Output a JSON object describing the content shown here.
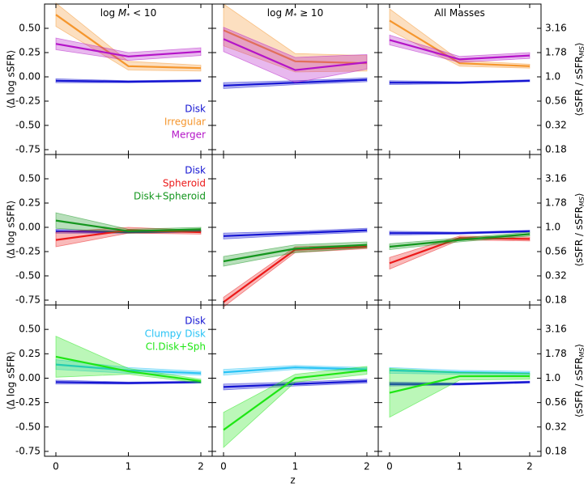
{
  "chart_data": {
    "type": "line",
    "layout": "3x3 grid of line panels with shaded uncertainty bands",
    "xlabel": "z",
    "x": [
      0,
      1,
      2
    ],
    "x_ticks": [
      "0",
      "1",
      "2"
    ],
    "ylim": [
      -0.8,
      0.75
    ],
    "left_ylabel": "⟨Δ log sSFR⟩",
    "right_ylabel_main": "⟨sSFR / sSFR",
    "right_ylabel_sub": "MS",
    "right_ylabel_close": "⟩",
    "left_ticks": [
      "0.50",
      "0.25",
      "0.00",
      "-0.25",
      "-0.50",
      "-0.75"
    ],
    "right_ticks": [
      "3.16",
      "1.78",
      "1.0",
      "0.56",
      "0.32",
      "0.18"
    ],
    "column_titles": [
      {
        "pre": "log ",
        "var": "M",
        "sub": "*",
        "post": " < 10"
      },
      {
        "pre": "log ",
        "var": "M",
        "sub": "*",
        "post": " ≥ 10"
      },
      {
        "pre": "All Masses",
        "var": "",
        "sub": "",
        "post": ""
      }
    ],
    "colors": {
      "Disk": "#1414d2",
      "Irregular": "#f5962d",
      "Merger": "#b414c8",
      "Spheroid": "#ec1a1a",
      "Disk+Spheroid": "#14961e",
      "Clumpy Disk": "#28c3f5",
      "Cl.Disk+Sph": "#1ee614"
    },
    "rows": [
      {
        "legend": [
          "Disk",
          "Irregular",
          "Merger"
        ],
        "panels": [
          {
            "series": [
              {
                "name": "Disk",
                "values": [
                  -0.04,
                  -0.05,
                  -0.04
                ],
                "lower": [
                  -0.06,
                  -0.06,
                  -0.05
                ],
                "upper": [
                  -0.02,
                  -0.04,
                  -0.03
                ]
              },
              {
                "name": "Irregular",
                "values": [
                  0.64,
                  0.11,
                  0.09
                ],
                "lower": [
                  0.52,
                  0.07,
                  0.06
                ],
                "upper": [
                  0.76,
                  0.16,
                  0.12
                ]
              },
              {
                "name": "Merger",
                "values": [
                  0.34,
                  0.21,
                  0.26
                ],
                "lower": [
                  0.28,
                  0.17,
                  0.22
                ],
                "upper": [
                  0.4,
                  0.25,
                  0.3
                ]
              }
            ]
          },
          {
            "series": [
              {
                "name": "Disk",
                "values": [
                  -0.09,
                  -0.06,
                  -0.03
                ],
                "lower": [
                  -0.12,
                  -0.08,
                  -0.05
                ],
                "upper": [
                  -0.06,
                  -0.04,
                  -0.01
                ]
              },
              {
                "name": "Irregular",
                "values": [
                  0.48,
                  0.16,
                  0.14
                ],
                "lower": [
                  0.32,
                  0.05,
                  0.06
                ],
                "upper": [
                  0.75,
                  0.24,
                  0.22
                ]
              },
              {
                "name": "Merger",
                "values": [
                  0.39,
                  0.07,
                  0.15
                ],
                "lower": [
                  0.26,
                  -0.06,
                  0.08
                ],
                "upper": [
                  0.51,
                  0.2,
                  0.23
                ]
              }
            ]
          },
          {
            "series": [
              {
                "name": "Disk",
                "values": [
                  -0.06,
                  -0.06,
                  -0.04
                ],
                "lower": [
                  -0.08,
                  -0.07,
                  -0.05
                ],
                "upper": [
                  -0.04,
                  -0.05,
                  -0.03
                ]
              },
              {
                "name": "Irregular",
                "values": [
                  0.58,
                  0.14,
                  0.11
                ],
                "lower": [
                  0.48,
                  0.11,
                  0.09
                ],
                "upper": [
                  0.7,
                  0.17,
                  0.13
                ]
              },
              {
                "name": "Merger",
                "values": [
                  0.38,
                  0.18,
                  0.22
                ],
                "lower": [
                  0.33,
                  0.15,
                  0.19
                ],
                "upper": [
                  0.43,
                  0.21,
                  0.25
                ]
              }
            ]
          }
        ]
      },
      {
        "legend": [
          "Disk",
          "Spheroid",
          "Disk+Spheroid"
        ],
        "panels": [
          {
            "series": [
              {
                "name": "Disk",
                "values": [
                  -0.04,
                  -0.05,
                  -0.04
                ],
                "lower": [
                  -0.06,
                  -0.06,
                  -0.05
                ],
                "upper": [
                  -0.02,
                  -0.04,
                  -0.03
                ]
              },
              {
                "name": "Spheroid",
                "values": [
                  -0.13,
                  -0.03,
                  -0.05
                ],
                "lower": [
                  -0.2,
                  -0.06,
                  -0.07
                ],
                "upper": [
                  -0.05,
                  0.0,
                  -0.03
                ]
              },
              {
                "name": "Disk+Spheroid",
                "values": [
                  0.07,
                  -0.04,
                  -0.02
                ],
                "lower": [
                  -0.01,
                  -0.06,
                  -0.04
                ],
                "upper": [
                  0.15,
                  -0.02,
                  0.0
                ]
              }
            ]
          },
          {
            "series": [
              {
                "name": "Disk",
                "values": [
                  -0.09,
                  -0.06,
                  -0.03
                ],
                "lower": [
                  -0.12,
                  -0.08,
                  -0.05
                ],
                "upper": [
                  -0.06,
                  -0.04,
                  -0.01
                ]
              },
              {
                "name": "Spheroid",
                "values": [
                  -0.77,
                  -0.23,
                  -0.2
                ],
                "lower": [
                  -0.82,
                  -0.26,
                  -0.22
                ],
                "upper": [
                  -0.72,
                  -0.2,
                  -0.18
                ]
              },
              {
                "name": "Disk+Spheroid",
                "values": [
                  -0.35,
                  -0.22,
                  -0.18
                ],
                "lower": [
                  -0.4,
                  -0.26,
                  -0.21
                ],
                "upper": [
                  -0.3,
                  -0.18,
                  -0.15
                ]
              }
            ]
          },
          {
            "series": [
              {
                "name": "Disk",
                "values": [
                  -0.06,
                  -0.06,
                  -0.04
                ],
                "lower": [
                  -0.08,
                  -0.07,
                  -0.05
                ],
                "upper": [
                  -0.04,
                  -0.05,
                  -0.03
                ]
              },
              {
                "name": "Spheroid",
                "values": [
                  -0.37,
                  -0.11,
                  -0.12
                ],
                "lower": [
                  -0.43,
                  -0.13,
                  -0.14
                ],
                "upper": [
                  -0.31,
                  -0.09,
                  -0.1
                ]
              },
              {
                "name": "Disk+Spheroid",
                "values": [
                  -0.2,
                  -0.13,
                  -0.07
                ],
                "lower": [
                  -0.23,
                  -0.15,
                  -0.09
                ],
                "upper": [
                  -0.17,
                  -0.11,
                  -0.05
                ]
              }
            ]
          }
        ]
      },
      {
        "legend": [
          "Disk",
          "Clumpy Disk",
          "Cl.Disk+Sph"
        ],
        "panels": [
          {
            "series": [
              {
                "name": "Disk",
                "values": [
                  -0.04,
                  -0.05,
                  -0.04
                ],
                "lower": [
                  -0.06,
                  -0.06,
                  -0.05
                ],
                "upper": [
                  -0.02,
                  -0.04,
                  -0.03
                ]
              },
              {
                "name": "Clumpy Disk",
                "values": [
                  0.14,
                  0.08,
                  0.05
                ],
                "lower": [
                  0.09,
                  0.05,
                  0.03
                ],
                "upper": [
                  0.19,
                  0.11,
                  0.07
                ]
              },
              {
                "name": "Cl.Disk+Sph",
                "values": [
                  0.22,
                  0.07,
                  -0.03
                ],
                "lower": [
                  0.01,
                  0.04,
                  -0.05
                ],
                "upper": [
                  0.43,
                  0.1,
                  -0.01
                ]
              }
            ]
          },
          {
            "series": [
              {
                "name": "Disk",
                "values": [
                  -0.09,
                  -0.06,
                  -0.03
                ],
                "lower": [
                  -0.12,
                  -0.08,
                  -0.05
                ],
                "upper": [
                  -0.06,
                  -0.04,
                  -0.01
                ]
              },
              {
                "name": "Clumpy Disk",
                "values": [
                  0.06,
                  0.11,
                  0.09
                ],
                "lower": [
                  0.03,
                  0.09,
                  0.07
                ],
                "upper": [
                  0.09,
                  0.13,
                  0.11
                ]
              },
              {
                "name": "Cl.Disk+Sph",
                "values": [
                  -0.53,
                  0.0,
                  0.08
                ],
                "lower": [
                  -0.71,
                  -0.04,
                  0.04
                ],
                "upper": [
                  -0.35,
                  0.04,
                  0.12
                ]
              }
            ]
          },
          {
            "series": [
              {
                "name": "Disk",
                "values": [
                  -0.06,
                  -0.06,
                  -0.04
                ],
                "lower": [
                  -0.08,
                  -0.07,
                  -0.05
                ],
                "upper": [
                  -0.04,
                  -0.05,
                  -0.03
                ]
              },
              {
                "name": "Clumpy Disk",
                "values": [
                  0.08,
                  0.06,
                  0.05
                ],
                "lower": [
                  0.05,
                  0.04,
                  0.03
                ],
                "upper": [
                  0.11,
                  0.08,
                  0.07
                ]
              },
              {
                "name": "Cl.Disk+Sph",
                "values": [
                  -0.15,
                  0.02,
                  0.02
                ],
                "lower": [
                  -0.4,
                  -0.02,
                  -0.01
                ],
                "upper": [
                  0.1,
                  0.06,
                  0.05
                ]
              }
            ]
          }
        ]
      }
    ]
  }
}
